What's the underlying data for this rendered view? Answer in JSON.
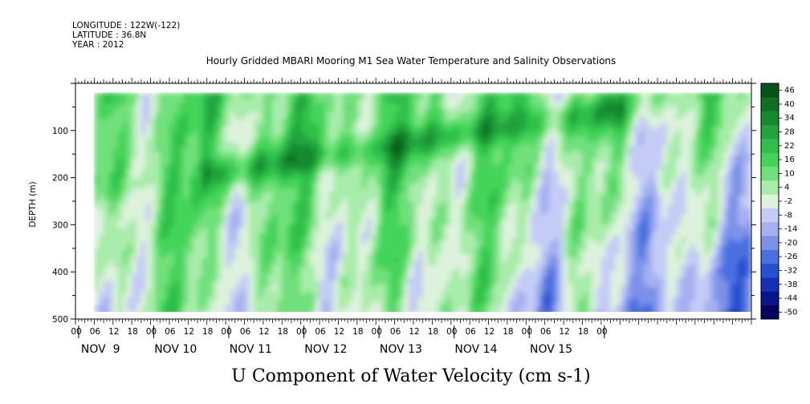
{
  "header": {
    "longitude": "LONGITUDE : 122W(-122)",
    "latitude": "LATITUDE : 36.8N",
    "year": "YEAR : 2012"
  },
  "chart_data": {
    "type": "heatmap",
    "title": "Hourly Gridded MBARI Mooring M1 Sea Water Temperature and Salinity Observations",
    "variable_label": "U Component of Water Velocity (cm s-1)",
    "ylabel": "DEPTH (m)",
    "ylim": [
      500,
      0
    ],
    "yticks": [
      100,
      200,
      300,
      400,
      500
    ],
    "y_data_range": [
      20,
      490
    ],
    "x_data_range_hours": [
      6,
      216
    ],
    "x_hour_ticks": [
      "00",
      "06",
      "12",
      "18",
      "00",
      "06",
      "12",
      "18",
      "00",
      "06",
      "12",
      "18",
      "00",
      "06",
      "12",
      "18",
      "00",
      "06",
      "12",
      "18",
      "00",
      "06",
      "12",
      "18",
      "00",
      "06",
      "12",
      "18",
      "00"
    ],
    "x_day_labels": [
      "NOV  9",
      "NOV 10",
      "NOV 11",
      "NOV 12",
      "NOV 13",
      "NOV 14",
      "NOV 15"
    ],
    "colorbar": {
      "levels": [
        -50,
        -44,
        -38,
        -32,
        -26,
        -20,
        -14,
        -8,
        -2,
        4,
        10,
        16,
        22,
        28,
        34,
        40,
        46
      ],
      "labels": [
        "46",
        "40",
        "34",
        "28",
        "22",
        "16",
        "10",
        "4",
        "-2",
        "-8",
        "-14",
        "-20",
        "-26",
        "-32",
        "-38",
        "-44",
        "-50"
      ],
      "colors": [
        "#050560",
        "#0a148c",
        "#1530b4",
        "#2650d2",
        "#4a70e0",
        "#7c92e8",
        "#a4b0f0",
        "#c4ccf6",
        "#dcf2dc",
        "#a8ecaa",
        "#6fe07a",
        "#45d45a",
        "#2ec04a",
        "#22a43c",
        "#178a2f",
        "#0e6f24",
        "#075218"
      ]
    },
    "grid": false,
    "legend": "right"
  }
}
